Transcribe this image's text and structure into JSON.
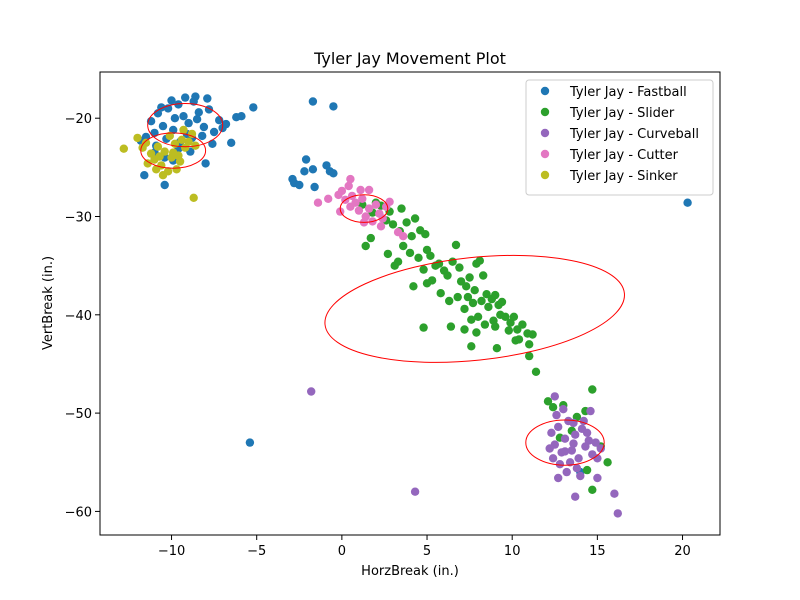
{
  "chart_data": {
    "type": "scatter",
    "title": "Tyler Jay Movement Plot",
    "xlabel": "HorzBreak (in.)",
    "ylabel": "VertBreak (in.)",
    "xlim": [
      -14.2,
      22.2
    ],
    "ylim": [
      -62.4,
      -15.3
    ],
    "xticks": [
      -10,
      -5,
      0,
      5,
      10,
      15,
      20
    ],
    "xtick_labels": [
      "−10",
      "−5",
      "0",
      "5",
      "10",
      "15",
      "20"
    ],
    "yticks": [
      -20,
      -30,
      -40,
      -50,
      -60
    ],
    "ytick_labels": [
      "−20",
      "−30",
      "−40",
      "−50",
      "−60"
    ],
    "grid": false,
    "legend_position": "top-right",
    "series": [
      {
        "name": "Tyler Jay - Fastball",
        "color": "#1f77b4",
        "points": [
          [
            -11.2,
            -20.3
          ],
          [
            -10.8,
            -19.5
          ],
          [
            -10.5,
            -20.8
          ],
          [
            -10.2,
            -19.0
          ],
          [
            -9.9,
            -21.2
          ],
          [
            -9.6,
            -18.6
          ],
          [
            -9.3,
            -19.8
          ],
          [
            -9.0,
            -20.5
          ],
          [
            -8.7,
            -18.3
          ],
          [
            -8.4,
            -19.4
          ],
          [
            -8.1,
            -20.9
          ],
          [
            -7.8,
            -19.1
          ],
          [
            -7.5,
            -21.4
          ],
          [
            -7.9,
            -18.0
          ],
          [
            -8.6,
            -17.8
          ],
          [
            -9.2,
            -17.9
          ],
          [
            -10.0,
            -18.2
          ],
          [
            -10.6,
            -18.9
          ],
          [
            -11.0,
            -21.5
          ],
          [
            -10.3,
            -22.1
          ],
          [
            -9.5,
            -22.4
          ],
          [
            -8.8,
            -22.0
          ],
          [
            -8.2,
            -21.8
          ],
          [
            -7.6,
            -22.6
          ],
          [
            -7.2,
            -20.2
          ],
          [
            -7.0,
            -21.0
          ],
          [
            -9.8,
            -20.0
          ],
          [
            -9.1,
            -21.6
          ],
          [
            -8.5,
            -20.1
          ],
          [
            -10.9,
            -22.8
          ],
          [
            -11.5,
            -21.9
          ],
          [
            -11.8,
            -22.3
          ],
          [
            -6.5,
            -22.5
          ],
          [
            -6.8,
            -20.6
          ],
          [
            -6.2,
            -19.9
          ],
          [
            -5.9,
            -19.8
          ],
          [
            -5.2,
            -18.9
          ],
          [
            -11.0,
            -23.5
          ],
          [
            -10.4,
            -24.0
          ],
          [
            -9.9,
            -24.3
          ],
          [
            -11.6,
            -25.8
          ],
          [
            -10.4,
            -26.8
          ],
          [
            -8.0,
            -24.6
          ],
          [
            -9.6,
            -23.1
          ],
          [
            -8.9,
            -23.4
          ],
          [
            -2.9,
            -26.2
          ],
          [
            -2.8,
            -26.6
          ],
          [
            -2.5,
            -26.8
          ],
          [
            -2.2,
            -25.4
          ],
          [
            -2.1,
            -24.2
          ],
          [
            -1.7,
            -25.2
          ],
          [
            -1.6,
            -27.0
          ],
          [
            -0.9,
            -24.8
          ],
          [
            -0.7,
            -25.4
          ],
          [
            -0.5,
            -25.6
          ],
          [
            -1.7,
            -18.3
          ],
          [
            -0.5,
            -18.8
          ],
          [
            -5.4,
            -53.0
          ],
          [
            20.3,
            -28.6
          ],
          [
            14.0,
            -56.0
          ]
        ]
      },
      {
        "name": "Tyler Jay - Slider",
        "color": "#2ca02c",
        "points": [
          [
            1.2,
            -28.8
          ],
          [
            1.8,
            -29.6
          ],
          [
            2.3,
            -28.9
          ],
          [
            2.6,
            -30.4
          ],
          [
            3.0,
            -30.8
          ],
          [
            2.8,
            -29.5
          ],
          [
            3.4,
            -31.5
          ],
          [
            3.8,
            -30.6
          ],
          [
            4.1,
            -32.0
          ],
          [
            4.3,
            -30.2
          ],
          [
            4.6,
            -31.4
          ],
          [
            4.9,
            -31.8
          ],
          [
            5.0,
            -33.4
          ],
          [
            3.6,
            -33.0
          ],
          [
            3.3,
            -34.6
          ],
          [
            3.1,
            -35.0
          ],
          [
            2.7,
            -33.8
          ],
          [
            1.7,
            -32.2
          ],
          [
            1.4,
            -33.0
          ],
          [
            4.0,
            -33.7
          ],
          [
            4.5,
            -34.2
          ],
          [
            4.8,
            -35.4
          ],
          [
            5.2,
            -34.0
          ],
          [
            5.5,
            -35.0
          ],
          [
            5.7,
            -34.8
          ],
          [
            6.0,
            -35.5
          ],
          [
            6.2,
            -36.0
          ],
          [
            6.5,
            -34.6
          ],
          [
            6.7,
            -32.9
          ],
          [
            6.9,
            -35.2
          ],
          [
            7.0,
            -36.6
          ],
          [
            7.3,
            -37.1
          ],
          [
            7.5,
            -36.2
          ],
          [
            7.8,
            -37.5
          ],
          [
            7.9,
            -34.8
          ],
          [
            8.1,
            -34.5
          ],
          [
            8.3,
            -36.0
          ],
          [
            8.5,
            -37.9
          ],
          [
            8.8,
            -38.4
          ],
          [
            9.0,
            -38.0
          ],
          [
            9.2,
            -39.0
          ],
          [
            9.4,
            -38.7
          ],
          [
            9.6,
            -40.2
          ],
          [
            9.9,
            -40.8
          ],
          [
            10.1,
            -40.2
          ],
          [
            10.3,
            -41.5
          ],
          [
            10.6,
            -41.0
          ],
          [
            10.9,
            -41.9
          ],
          [
            11.2,
            -42.0
          ],
          [
            11.0,
            -43.0
          ],
          [
            10.2,
            -42.6
          ],
          [
            9.8,
            -41.6
          ],
          [
            9.0,
            -41.2
          ],
          [
            8.4,
            -41.0
          ],
          [
            7.9,
            -41.8
          ],
          [
            7.6,
            -40.5
          ],
          [
            7.2,
            -39.4
          ],
          [
            6.8,
            -38.2
          ],
          [
            6.3,
            -38.6
          ],
          [
            5.8,
            -37.8
          ],
          [
            5.3,
            -36.5
          ],
          [
            5.0,
            -36.8
          ],
          [
            4.2,
            -37.1
          ],
          [
            8.6,
            -39.2
          ],
          [
            8.2,
            -38.6
          ],
          [
            7.7,
            -38.8
          ],
          [
            9.3,
            -40.0
          ],
          [
            8.9,
            -40.6
          ],
          [
            8.0,
            -40.2
          ],
          [
            7.4,
            -38.2
          ],
          [
            4.8,
            -41.3
          ],
          [
            6.4,
            -41.2
          ],
          [
            7.2,
            -41.5
          ],
          [
            7.6,
            -43.2
          ],
          [
            9.1,
            -43.4
          ],
          [
            10.4,
            -42.5
          ],
          [
            11.0,
            -44.2
          ],
          [
            11.4,
            -45.8
          ],
          [
            12.1,
            -48.8
          ],
          [
            12.4,
            -49.4
          ],
          [
            13.0,
            -49.2
          ],
          [
            14.7,
            -47.6
          ],
          [
            15.2,
            -53.4
          ],
          [
            15.6,
            -55.0
          ],
          [
            14.7,
            -57.8
          ],
          [
            14.4,
            -55.8
          ],
          [
            13.5,
            -51.8
          ],
          [
            12.8,
            -52.5
          ],
          [
            13.8,
            -50.4
          ],
          [
            14.3,
            -49.8
          ],
          [
            3.5,
            -29.2
          ],
          [
            2.0,
            -28.6
          ]
        ]
      },
      {
        "name": "Tyler Jay - Curveball",
        "color": "#9467bd",
        "points": [
          [
            12.3,
            -52.0
          ],
          [
            12.5,
            -53.2
          ],
          [
            12.7,
            -51.4
          ],
          [
            12.9,
            -54.0
          ],
          [
            13.1,
            -52.6
          ],
          [
            13.3,
            -50.8
          ],
          [
            13.5,
            -53.8
          ],
          [
            13.7,
            -52.2
          ],
          [
            13.9,
            -54.6
          ],
          [
            14.1,
            -51.6
          ],
          [
            14.3,
            -53.4
          ],
          [
            14.5,
            -52.8
          ],
          [
            14.7,
            -54.2
          ],
          [
            14.9,
            -53.0
          ],
          [
            12.6,
            -50.2
          ],
          [
            13.0,
            -49.6
          ],
          [
            13.4,
            -55.0
          ],
          [
            13.8,
            -55.6
          ],
          [
            14.2,
            -50.8
          ],
          [
            14.6,
            -49.8
          ],
          [
            12.4,
            -54.6
          ],
          [
            12.8,
            -55.2
          ],
          [
            13.2,
            -56.0
          ],
          [
            14.0,
            -56.4
          ],
          [
            15.0,
            -54.6
          ],
          [
            15.2,
            -53.6
          ],
          [
            12.2,
            -53.6
          ],
          [
            12.5,
            -48.3
          ],
          [
            13.6,
            -51.0
          ],
          [
            14.4,
            -52.0
          ],
          [
            13.1,
            -53.9
          ],
          [
            13.6,
            -53.1
          ],
          [
            12.7,
            -56.6
          ],
          [
            13.7,
            -58.5
          ],
          [
            15.0,
            -56.6
          ],
          [
            16.0,
            -58.2
          ],
          [
            16.2,
            -60.2
          ],
          [
            4.3,
            -58.0
          ],
          [
            -1.8,
            -47.8
          ]
        ]
      },
      {
        "name": "Tyler Jay - Cutter",
        "color": "#e377c2",
        "points": [
          [
            0.2,
            -28.3
          ],
          [
            0.5,
            -29.0
          ],
          [
            0.8,
            -28.6
          ],
          [
            1.0,
            -29.4
          ],
          [
            1.2,
            -28.2
          ],
          [
            1.4,
            -30.0
          ],
          [
            1.6,
            -29.2
          ],
          [
            1.8,
            -30.5
          ],
          [
            2.0,
            -28.8
          ],
          [
            2.2,
            -29.7
          ],
          [
            2.4,
            -30.2
          ],
          [
            2.6,
            -29.0
          ],
          [
            2.8,
            -28.5
          ],
          [
            1.1,
            -27.3
          ],
          [
            1.6,
            -27.3
          ],
          [
            0.6,
            -27.9
          ],
          [
            0.4,
            -26.9
          ],
          [
            0.0,
            -27.4
          ],
          [
            -0.2,
            -27.8
          ],
          [
            -0.1,
            -29.5
          ],
          [
            1.3,
            -30.6
          ],
          [
            2.3,
            -31.0
          ],
          [
            3.3,
            -31.6
          ],
          [
            3.6,
            -32.0
          ],
          [
            0.5,
            -26.2
          ],
          [
            -1.4,
            -28.6
          ],
          [
            -0.8,
            -28.2
          ]
        ]
      },
      {
        "name": "Tyler Jay - Sinker",
        "color": "#bcbd22",
        "points": [
          [
            -12.8,
            -23.1
          ],
          [
            -12.0,
            -22.0
          ],
          [
            -11.5,
            -22.5
          ],
          [
            -11.2,
            -23.6
          ],
          [
            -11.0,
            -24.2
          ],
          [
            -10.8,
            -22.9
          ],
          [
            -10.6,
            -24.8
          ],
          [
            -10.4,
            -23.4
          ],
          [
            -10.2,
            -25.4
          ],
          [
            -10.0,
            -24.0
          ],
          [
            -9.8,
            -22.6
          ],
          [
            -9.6,
            -23.8
          ],
          [
            -9.4,
            -22.2
          ],
          [
            -9.2,
            -23.0
          ],
          [
            -9.0,
            -22.4
          ],
          [
            -8.8,
            -21.6
          ],
          [
            -8.6,
            -22.8
          ],
          [
            -10.9,
            -25.2
          ],
          [
            -10.5,
            -25.8
          ],
          [
            -11.4,
            -24.6
          ],
          [
            -11.7,
            -23.0
          ],
          [
            -9.7,
            -25.2
          ],
          [
            -8.7,
            -28.1
          ],
          [
            -10.1,
            -21.8
          ],
          [
            -9.3,
            -21.2
          ],
          [
            -9.9,
            -23.5
          ],
          [
            -10.7,
            -23.9
          ],
          [
            -9.5,
            -24.4
          ]
        ]
      }
    ],
    "ellipses": [
      {
        "cx": -9.2,
        "cy": -20.7,
        "rx": 2.2,
        "ry": 2.2,
        "color": "#ff0000"
      },
      {
        "cx": -9.9,
        "cy": -23.3,
        "rx": 1.9,
        "ry": 1.8,
        "color": "#ff0000"
      },
      {
        "cx": 1.3,
        "cy": -29.2,
        "rx": 1.4,
        "ry": 1.4,
        "color": "#ff0000"
      },
      {
        "cx": 13.1,
        "cy": -53.0,
        "rx": 2.3,
        "ry": 2.3,
        "color": "#ff0000"
      },
      {
        "cx": 7.8,
        "cy": -39.4,
        "rx": 5.7,
        "ry": 5.5,
        "rotation": -30,
        "color": "#ff0000"
      }
    ]
  }
}
